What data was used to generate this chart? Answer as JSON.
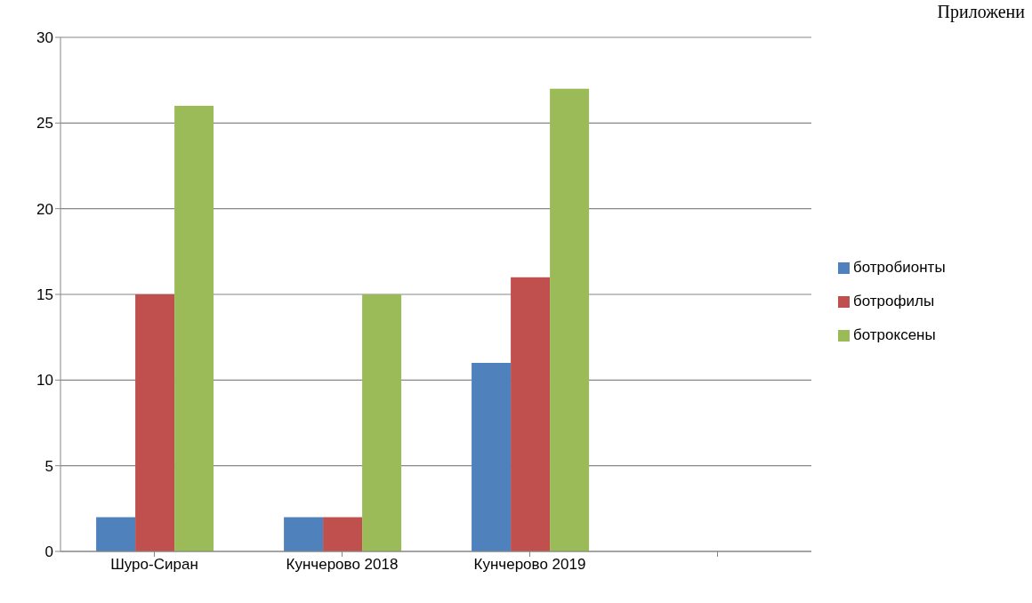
{
  "chart_data": {
    "type": "bar",
    "categories": [
      "Шуро-Сиран",
      "Кунчерово 2018",
      "Кунчерово 2019",
      null
    ],
    "series": [
      {
        "name": "ботробионты",
        "color": "#4f81bd",
        "values": [
          2,
          2,
          11,
          null
        ]
      },
      {
        "name": "ботрофилы",
        "color": "#c0504d",
        "values": [
          15,
          2,
          16,
          null
        ]
      },
      {
        "name": "ботроксены",
        "color": "#9bbb59",
        "values": [
          26,
          15,
          27,
          null
        ]
      }
    ],
    "ylim": [
      0,
      30
    ],
    "yticks": [
      0,
      5,
      10,
      15,
      20,
      25,
      30
    ],
    "grid": "y",
    "legend": "right",
    "annotations": [
      "Приложени"
    ]
  }
}
